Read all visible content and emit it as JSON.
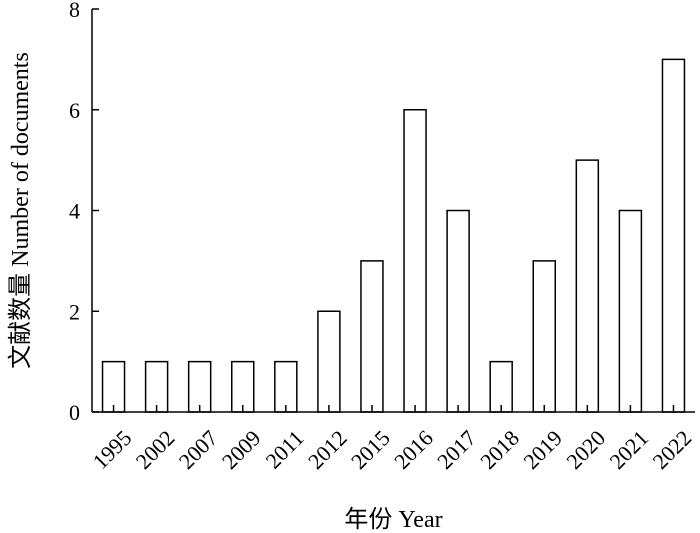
{
  "chart_data": {
    "type": "bar",
    "xlabel": "年份 Year",
    "ylabel": "文献数量 Number of documents",
    "categories": [
      "1995",
      "2002",
      "2007",
      "2009",
      "2011",
      "2012",
      "2015",
      "2016",
      "2017",
      "2018",
      "2019",
      "2020",
      "2021",
      "2022"
    ],
    "values": [
      1,
      1,
      1,
      1,
      1,
      2,
      3,
      6,
      4,
      1,
      3,
      5,
      4,
      7
    ],
    "ylim": [
      0,
      8
    ],
    "yticks": [
      0,
      2,
      4,
      6,
      8
    ],
    "grid": false,
    "bar_fill": "#ffffff",
    "bar_stroke": "#000000"
  }
}
